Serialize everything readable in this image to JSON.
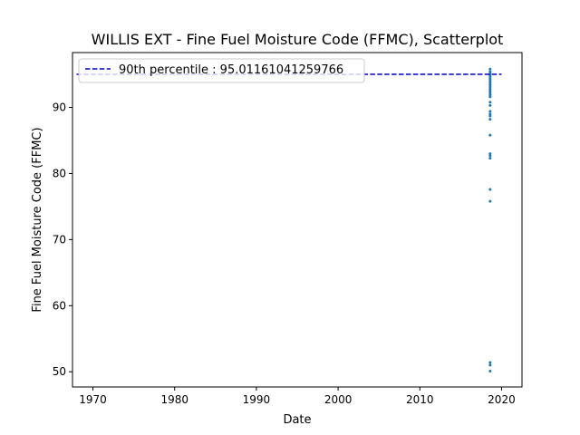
{
  "chart_data": {
    "type": "scatter",
    "title": "WILLIS EXT - Fine Fuel Moisture Code (FFMC), Scatterplot",
    "xlabel": "Date",
    "ylabel": "Fine Fuel Moisture Code (FFMC)",
    "xlim": [
      1967.5,
      2022.5
    ],
    "ylim": [
      47.7,
      98.3
    ],
    "x_ticks": [
      1970,
      1980,
      1990,
      2000,
      2010,
      2020
    ],
    "y_ticks": [
      50,
      60,
      70,
      80,
      90
    ],
    "grid": false,
    "legend_placement": "top-left",
    "reference_line": {
      "label": "90th percentile : 95.01161041259766",
      "value": 95.01161041259766,
      "x_range": [
        1968.0,
        2020.0
      ],
      "style": "dashed",
      "color": "#0000cc"
    },
    "series": [
      {
        "color": "#1f77b4",
        "points": [
          [
            2018.6,
            95.8
          ],
          [
            2018.6,
            95.4
          ],
          [
            2018.6,
            95.1
          ],
          [
            2018.6,
            94.8
          ],
          [
            2018.6,
            94.6
          ],
          [
            2018.6,
            94.3
          ],
          [
            2018.6,
            94.0
          ],
          [
            2018.6,
            93.7
          ],
          [
            2018.6,
            93.4
          ],
          [
            2018.6,
            93.1
          ],
          [
            2018.6,
            92.8
          ],
          [
            2018.6,
            92.5
          ],
          [
            2018.6,
            92.2
          ],
          [
            2018.6,
            91.9
          ],
          [
            2018.6,
            91.6
          ],
          [
            2018.6,
            90.8
          ],
          [
            2018.6,
            90.3
          ],
          [
            2018.6,
            89.4
          ],
          [
            2018.6,
            89.0
          ],
          [
            2018.6,
            88.7
          ],
          [
            2018.6,
            88.2
          ],
          [
            2018.6,
            85.8
          ],
          [
            2018.6,
            83.0
          ],
          [
            2018.6,
            82.7
          ],
          [
            2018.6,
            82.3
          ],
          [
            2018.6,
            77.6
          ],
          [
            2018.6,
            75.8
          ],
          [
            2018.6,
            51.4
          ],
          [
            2018.6,
            51.0
          ],
          [
            2018.6,
            50.1
          ]
        ]
      }
    ]
  }
}
